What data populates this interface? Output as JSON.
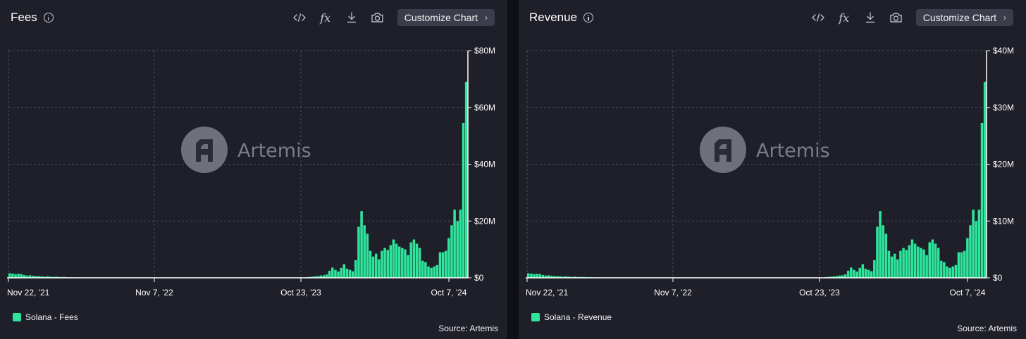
{
  "colors": {
    "bar": "#2ee59d",
    "panel_bg": "#1e1f28",
    "button_bg": "#3b3d4a"
  },
  "watermark": {
    "label": "Artemis"
  },
  "toolbar": {
    "icons": [
      "embed-icon",
      "formula-icon",
      "download-icon",
      "camera-icon"
    ],
    "fx_label": "fx",
    "customize_label": "Customize Chart",
    "chevron": "›"
  },
  "panels": [
    {
      "title": "Fees",
      "legend_label": "Solana - Fees",
      "source": "Source: Artemis",
      "chart_data": {
        "type": "bar",
        "title": "Fees",
        "series_name": "Solana - Fees",
        "x_tick_labels": [
          "Nov 22, '21",
          "Nov 7, '22",
          "Oct 23, '23",
          "Oct 7, '24"
        ],
        "y_tick_labels": [
          "$0",
          "$20M",
          "$40M",
          "$60M",
          "$80M"
        ],
        "ylim": [
          0,
          80
        ],
        "unit": "USD millions",
        "values": [
          1.6,
          1.5,
          1.3,
          1.4,
          1.3,
          1.0,
          0.8,
          0.9,
          0.7,
          0.6,
          0.6,
          0.5,
          0.4,
          0.5,
          0.4,
          0.3,
          0.4,
          0.3,
          0.3,
          0.3,
          0.2,
          0.2,
          0.2,
          0.15,
          0.15,
          0.1,
          0.1,
          0.1,
          0.1,
          0.1,
          0.1,
          0.1,
          0.1,
          0.1,
          0.1,
          0.1,
          0.1,
          0.1,
          0.1,
          0.1,
          0.1,
          0.1,
          0.1,
          0.1,
          0.1,
          0.1,
          0.1,
          0.1,
          0.1,
          0.1,
          0.1,
          0.1,
          0.1,
          0.1,
          0.1,
          0.1,
          0.1,
          0.1,
          0.1,
          0.1,
          0.1,
          0.1,
          0.1,
          0.1,
          0.1,
          0.1,
          0.1,
          0.1,
          0.1,
          0.1,
          0.1,
          0.1,
          0.1,
          0.1,
          0.1,
          0.1,
          0.1,
          0.1,
          0.1,
          0.1,
          0.1,
          0.1,
          0.1,
          0.1,
          0.1,
          0.1,
          0.1,
          0.1,
          0.1,
          0.1,
          0.1,
          0.1,
          0.1,
          0.1,
          0.1,
          0.1,
          0.1,
          0.1,
          0.1,
          0.1,
          0.1,
          0.1,
          0.2,
          0.3,
          0.4,
          0.5,
          0.6,
          0.8,
          0.9,
          1.2,
          2.5,
          3.6,
          2.8,
          2.2,
          3.5,
          4.8,
          3.2,
          2.8,
          2.3,
          6.2,
          18.0,
          23.5,
          18.5,
          15.5,
          9.5,
          7.5,
          8.5,
          6.5,
          9.5,
          10.5,
          9.8,
          11.5,
          13.5,
          12.0,
          11.0,
          10.5,
          10.0,
          8.0,
          12.5,
          13.5,
          12.0,
          10.5,
          6.0,
          5.5,
          4.0,
          3.5,
          4.0,
          4.5,
          9.0,
          9.0,
          9.5,
          14.0,
          18.5,
          24.0,
          20.0,
          24.0,
          54.5,
          69.0
        ]
      }
    },
    {
      "title": "Revenue",
      "legend_label": "Solana - Revenue",
      "source": "Source: Artemis",
      "chart_data": {
        "type": "bar",
        "title": "Revenue",
        "series_name": "Solana - Revenue",
        "x_tick_labels": [
          "Nov 22, '21",
          "Nov 7, '22",
          "Oct 23, '23",
          "Oct 7, '24"
        ],
        "y_tick_labels": [
          "$0",
          "$10M",
          "$20M",
          "$30M",
          "$40M"
        ],
        "ylim": [
          0,
          40
        ],
        "unit": "USD millions",
        "values": [
          0.8,
          0.75,
          0.65,
          0.7,
          0.65,
          0.5,
          0.4,
          0.45,
          0.35,
          0.3,
          0.3,
          0.25,
          0.2,
          0.25,
          0.2,
          0.15,
          0.2,
          0.15,
          0.15,
          0.15,
          0.1,
          0.1,
          0.1,
          0.08,
          0.08,
          0.05,
          0.05,
          0.05,
          0.05,
          0.05,
          0.05,
          0.05,
          0.05,
          0.05,
          0.05,
          0.05,
          0.05,
          0.05,
          0.05,
          0.05,
          0.05,
          0.05,
          0.05,
          0.05,
          0.05,
          0.05,
          0.05,
          0.05,
          0.05,
          0.05,
          0.05,
          0.05,
          0.05,
          0.05,
          0.05,
          0.05,
          0.05,
          0.05,
          0.05,
          0.05,
          0.05,
          0.05,
          0.05,
          0.05,
          0.05,
          0.05,
          0.05,
          0.05,
          0.05,
          0.05,
          0.05,
          0.05,
          0.05,
          0.05,
          0.05,
          0.05,
          0.05,
          0.05,
          0.05,
          0.05,
          0.05,
          0.05,
          0.05,
          0.05,
          0.05,
          0.05,
          0.05,
          0.05,
          0.05,
          0.05,
          0.05,
          0.05,
          0.05,
          0.05,
          0.05,
          0.05,
          0.05,
          0.05,
          0.05,
          0.05,
          0.05,
          0.05,
          0.1,
          0.15,
          0.2,
          0.25,
          0.3,
          0.4,
          0.45,
          0.6,
          1.25,
          1.8,
          1.4,
          1.1,
          1.75,
          2.4,
          1.6,
          1.4,
          1.15,
          3.1,
          9.0,
          11.75,
          9.25,
          7.75,
          4.75,
          3.75,
          4.25,
          3.25,
          4.75,
          5.25,
          4.9,
          5.75,
          6.75,
          6.0,
          5.5,
          5.25,
          5.0,
          4.0,
          6.25,
          6.75,
          6.0,
          5.25,
          3.0,
          2.75,
          2.0,
          1.75,
          2.0,
          2.25,
          4.5,
          4.5,
          4.75,
          7.0,
          9.25,
          12.0,
          10.0,
          12.0,
          27.25,
          34.5
        ]
      }
    }
  ]
}
